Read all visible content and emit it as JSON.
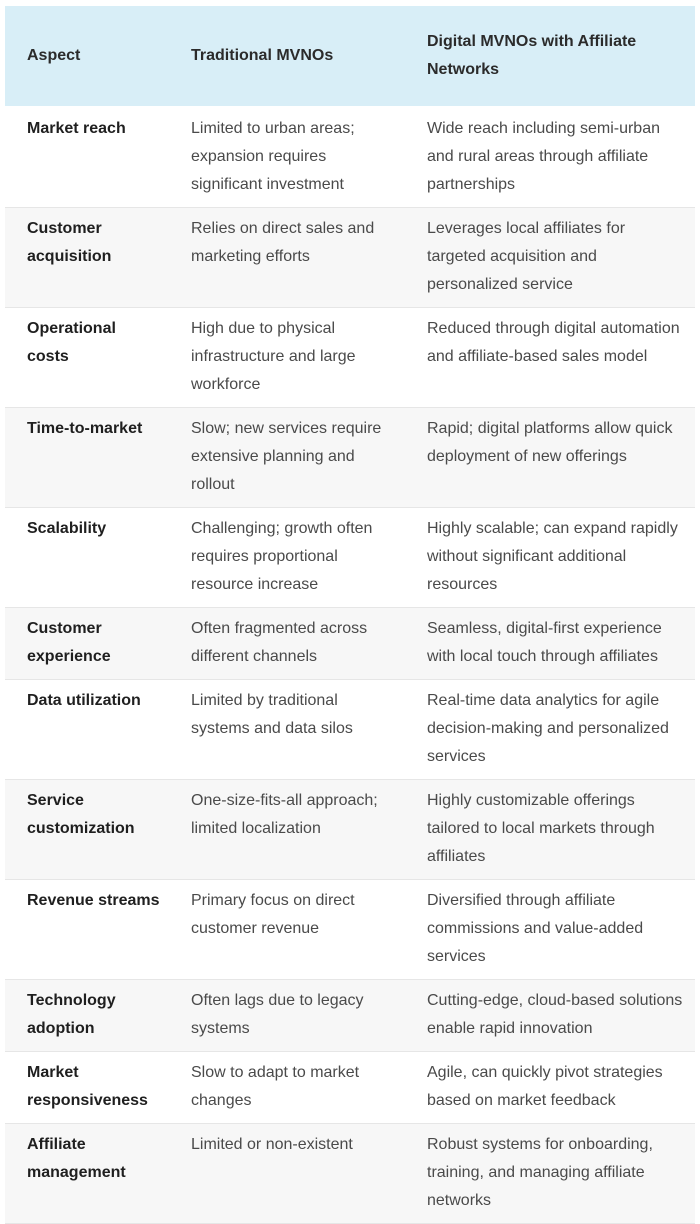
{
  "headers": [
    "Aspect",
    "Traditional MVNOs",
    "Digital MVNOs with Affiliate Networks"
  ],
  "rows": [
    {
      "aspect": "Market reach",
      "traditional": "Limited to urban areas; expansion requires significant investment",
      "digital": "Wide reach including semi-urban and rural areas through affiliate partnerships"
    },
    {
      "aspect": "Customer acquisition",
      "traditional": "Relies on direct sales and marketing efforts",
      "digital": "Leverages local affiliates for targeted acquisition and personalized service"
    },
    {
      "aspect": "Operational costs",
      "traditional": "High due to physical infrastructure and large workforce",
      "digital": "Reduced through digital automation and affiliate-based sales model"
    },
    {
      "aspect": "Time-to-market",
      "traditional": "Slow; new services require extensive planning and rollout",
      "digital": "Rapid; digital platforms allow quick deployment of new offerings"
    },
    {
      "aspect": "Scalability",
      "traditional": "Challenging; growth often requires proportional resource increase",
      "digital": "Highly scalable; can expand rapidly without significant additional resources"
    },
    {
      "aspect": "Customer experience",
      "traditional": "Often fragmented across different channels",
      "digital": "Seamless, digital-first experience with local touch through affiliates"
    },
    {
      "aspect": "Data utilization",
      "traditional": "Limited by traditional systems and data silos",
      "digital": "Real-time data analytics for agile decision-making and personalized services"
    },
    {
      "aspect": "Service customization",
      "traditional": "One-size-fits-all approach; limited localization",
      "digital": "Highly customizable offerings tailored to local markets through affiliates"
    },
    {
      "aspect": "Revenue streams",
      "traditional": "Primary focus on direct customer revenue",
      "digital": "Diversified through affiliate commissions and value-added services"
    },
    {
      "aspect": "Technology adoption",
      "traditional": "Often lags due to legacy systems",
      "digital": "Cutting-edge, cloud-based solutions enable rapid innovation"
    },
    {
      "aspect": "Market responsiveness",
      "traditional": "Slow to adapt to market changes",
      "digital": "Agile, can quickly pivot strategies based on market feedback"
    },
    {
      "aspect": "Affiliate management",
      "traditional": "Limited or non-existent",
      "digital": "Robust systems for onboarding, training, and managing affiliate networks"
    }
  ]
}
